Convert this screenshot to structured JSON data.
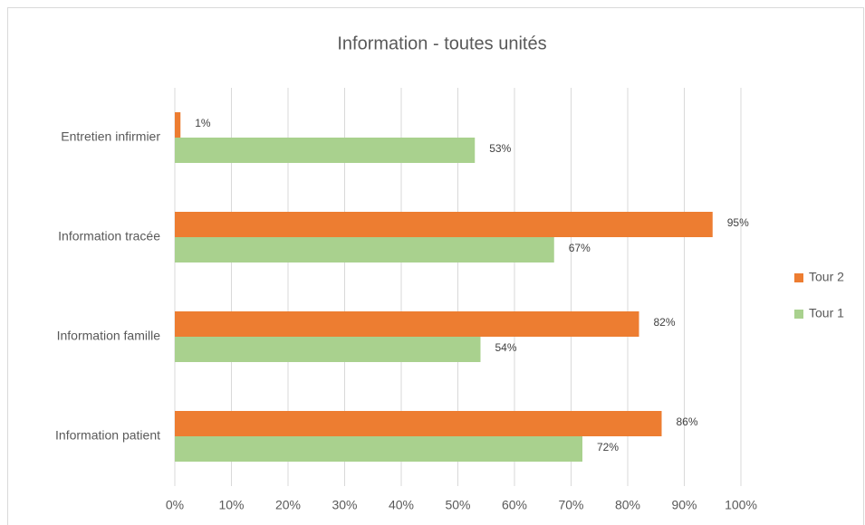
{
  "chart_data": {
    "type": "hbar",
    "title": "Information - toutes unités",
    "categories": [
      "Entretien infirmier",
      "Information tracée",
      "Information famille",
      "Information patient"
    ],
    "series": [
      {
        "name": "Tour 2",
        "color": "#ed7d31",
        "values": [
          1,
          95,
          82,
          86
        ],
        "value_labels": [
          "1%",
          "95%",
          "82%",
          "86%"
        ]
      },
      {
        "name": "Tour 1",
        "color": "#a9d18e",
        "values": [
          53,
          67,
          54,
          72
        ],
        "value_labels": [
          "53%",
          "67%",
          "54%",
          "72%"
        ]
      }
    ],
    "xlim": [
      0,
      100
    ],
    "xticks": [
      {
        "value": 0,
        "label": "0%"
      },
      {
        "value": 10,
        "label": "10%"
      },
      {
        "value": 20,
        "label": "20%"
      },
      {
        "value": 30,
        "label": "30%"
      },
      {
        "value": 40,
        "label": "40%"
      },
      {
        "value": 50,
        "label": "50%"
      },
      {
        "value": 60,
        "label": "60%"
      },
      {
        "value": 70,
        "label": "70%"
      },
      {
        "value": 80,
        "label": "80%"
      },
      {
        "value": 90,
        "label": "90%"
      },
      {
        "value": 100,
        "label": "100%"
      }
    ],
    "grid": true,
    "legend": "right"
  }
}
